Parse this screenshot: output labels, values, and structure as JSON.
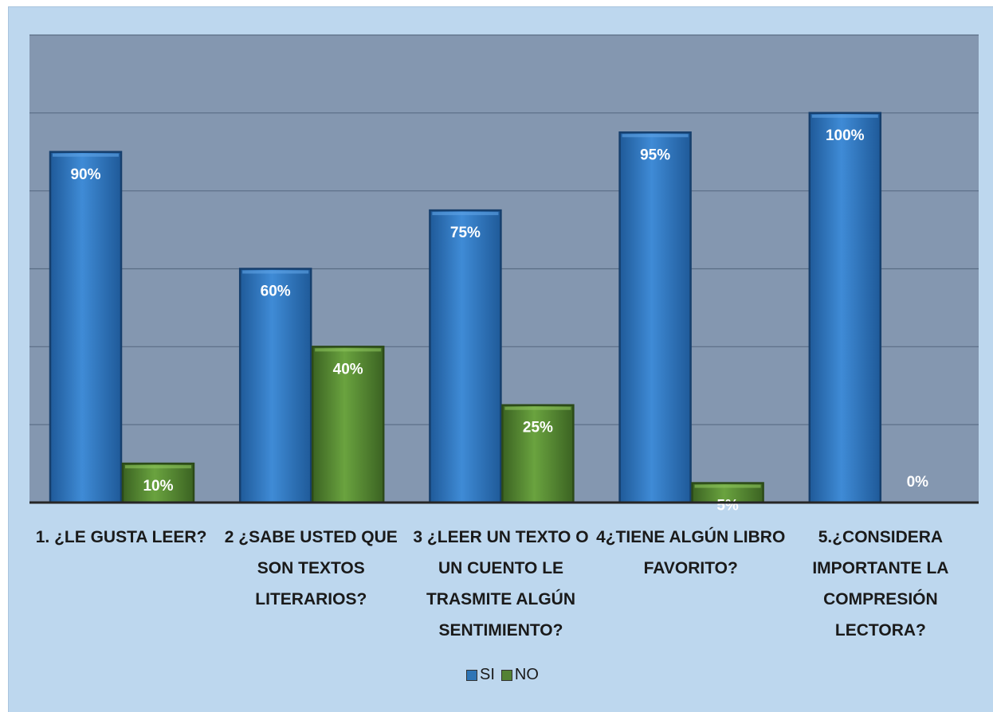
{
  "chart_data": {
    "type": "bar",
    "categories": [
      [
        "1. ¿LE GUSTA LEER?"
      ],
      [
        "2 ¿SABE USTED QUE",
        "SON TEXTOS",
        "LITERARIOS?"
      ],
      [
        "3 ¿LEER UN TEXTO O",
        "UN CUENTO LE",
        "TRASMITE ALGÚN",
        "SENTIMIENTO?"
      ],
      [
        "4¿TIENE ALGÚN LIBRO",
        "FAVORITO?"
      ],
      [
        "5.¿CONSIDERA",
        "IMPORTANTE LA",
        "COMPRESIÓN",
        "LECTORA?"
      ]
    ],
    "series": [
      {
        "name": "SI",
        "values": [
          90,
          60,
          75,
          95,
          100
        ],
        "labels": [
          "90%",
          "60%",
          "75%",
          "95%",
          "100%"
        ],
        "color": "#2e75b6"
      },
      {
        "name": "NO",
        "values": [
          10,
          40,
          25,
          5,
          0
        ],
        "labels": [
          "10%",
          "40%",
          "25%",
          "5%",
          "0%"
        ],
        "color": "#548235"
      }
    ],
    "ylim": [
      0,
      120
    ],
    "grid": true,
    "legend_position": "bottom",
    "plot_background": "#8497b0"
  }
}
